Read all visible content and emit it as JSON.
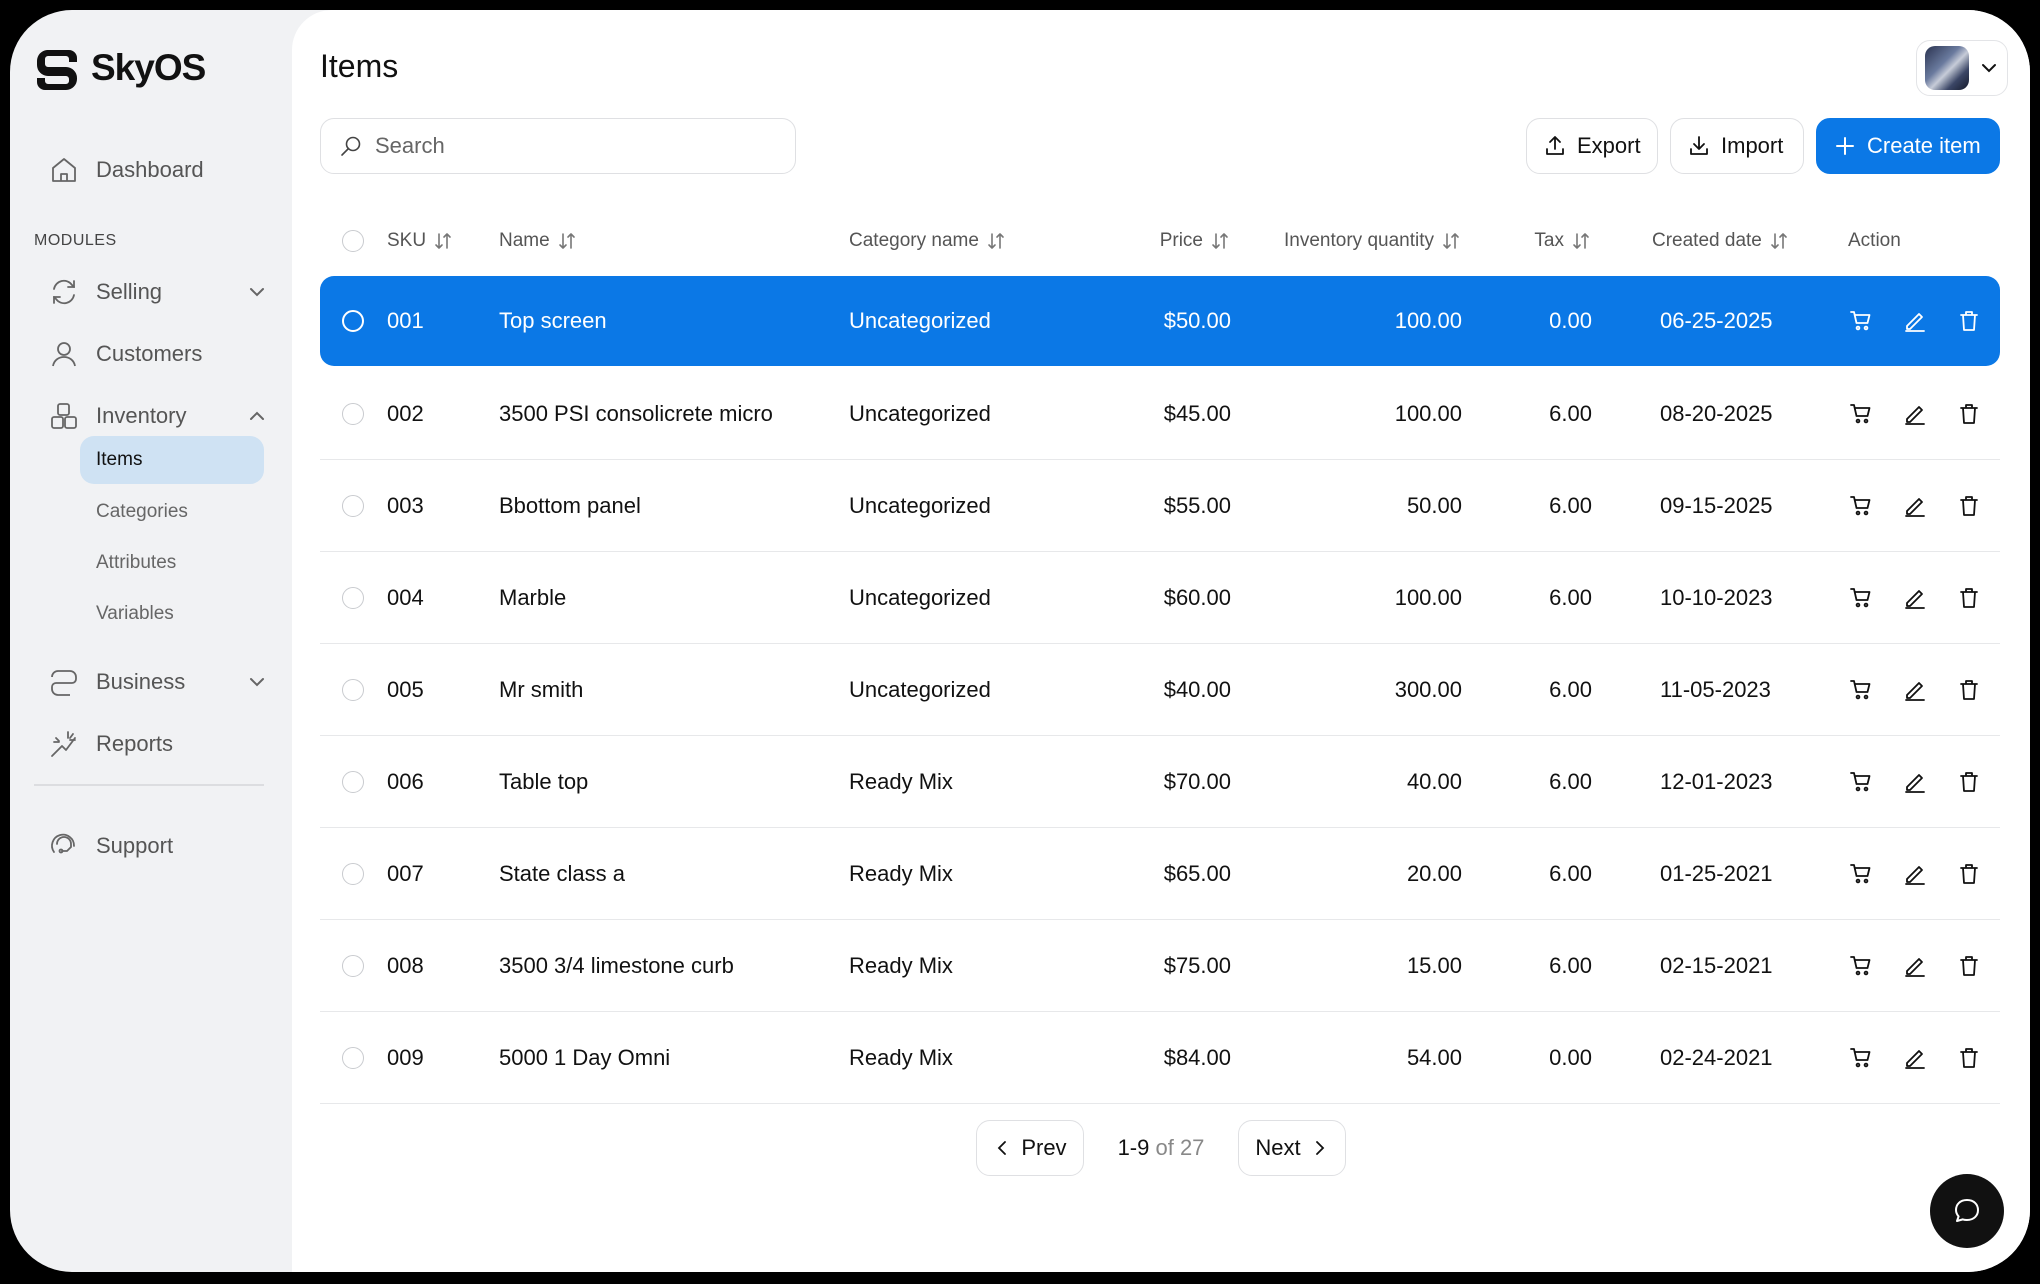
{
  "brand": {
    "name": "SkyOS"
  },
  "sidebar": {
    "dashboard": "Dashboard",
    "section_label": "MODULES",
    "selling": "Selling",
    "customers": "Customers",
    "inventory": "Inventory",
    "inventory_items": [
      "Items",
      "Categories",
      "Attributes",
      "Variables"
    ],
    "business": "Business",
    "reports": "Reports",
    "support": "Support"
  },
  "header": {
    "title": "Items"
  },
  "toolbar": {
    "search_placeholder": "Search",
    "export_label": "Export",
    "import_label": "Import",
    "create_label": "Create item"
  },
  "table": {
    "columns": [
      "SKU",
      "Name",
      "Category name",
      "Price",
      "Inventory quantity",
      "Tax",
      "Created date",
      "Action"
    ],
    "selected_row_index": 0,
    "rows": [
      {
        "sku": "001",
        "name": "Top screen",
        "category": "Uncategorized",
        "price": "$50.00",
        "inventory": "100.00",
        "tax": "0.00",
        "created": "06-25-2025"
      },
      {
        "sku": "002",
        "name": "3500 PSI consolicrete micro",
        "category": "Uncategorized",
        "price": "$45.00",
        "inventory": "100.00",
        "tax": "6.00",
        "created": "08-20-2025"
      },
      {
        "sku": "003",
        "name": "Bbottom panel",
        "category": "Uncategorized",
        "price": "$55.00",
        "inventory": "50.00",
        "tax": "6.00",
        "created": "09-15-2025"
      },
      {
        "sku": "004",
        "name": "Marble",
        "category": "Uncategorized",
        "price": "$60.00",
        "inventory": "100.00",
        "tax": "6.00",
        "created": "10-10-2023"
      },
      {
        "sku": "005",
        "name": "Mr smith",
        "category": "Uncategorized",
        "price": "$40.00",
        "inventory": "300.00",
        "tax": "6.00",
        "created": "11-05-2023"
      },
      {
        "sku": "006",
        "name": "Table top",
        "category": "Ready Mix",
        "price": "$70.00",
        "inventory": "40.00",
        "tax": "6.00",
        "created": "12-01-2023"
      },
      {
        "sku": "007",
        "name": "State class a",
        "category": "Ready Mix",
        "price": "$65.00",
        "inventory": "20.00",
        "tax": "6.00",
        "created": "01-25-2021"
      },
      {
        "sku": "008",
        "name": "3500 3/4 limestone curb",
        "category": "Ready Mix",
        "price": "$75.00",
        "inventory": "15.00",
        "tax": "6.00",
        "created": "02-15-2021"
      },
      {
        "sku": "009",
        "name": "5000 1 Day Omni",
        "category": "Ready Mix",
        "price": "$84.00",
        "inventory": "54.00",
        "tax": "0.00",
        "created": "02-24-2021"
      }
    ]
  },
  "pagination": {
    "prev": "Prev",
    "range": "1-9",
    "of_total": "of 27",
    "next": "Next"
  },
  "colors": {
    "accent": "#0b78e6",
    "active_nav": "#cfe2f3",
    "sidebar_bg": "#f1f2f4"
  }
}
